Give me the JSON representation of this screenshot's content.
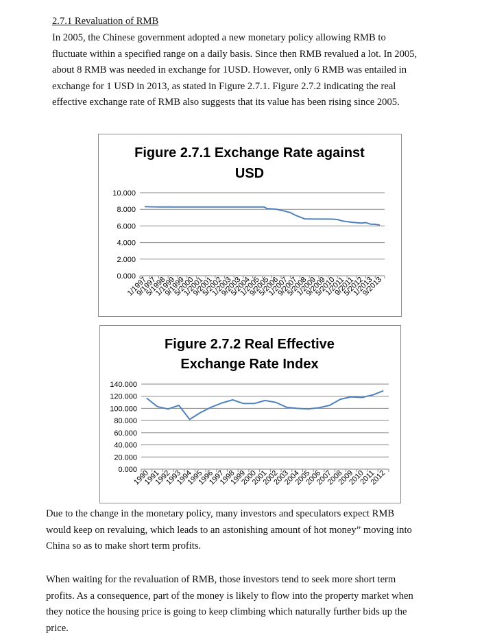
{
  "section": {
    "heading": "2.7.1 Revaluation of RMB",
    "intro_lines": [
      "In 2005, the Chinese government adopted a new monetary policy allowing RMB to",
      "fluctuate within a specified range on a daily basis. Since then RMB revalued a lot. In 2005,",
      "about 8 RMB was needed in exchange for 1USD. However, only 6 RMB was entailed in",
      "exchange for 1 USD in 2013, as stated in Figure 2.7.1. Figure 2.7.2 indicating the real",
      "effective exchange rate of RMB also suggests that its value has been rising since 2005."
    ],
    "para2_lines": [
      "Due to the change in the monetary policy, many investors and speculators expect RMB",
      "would keep on revaluing, which leads to an astonishing amount of hot money” moving into",
      "China so as to make short term profits."
    ],
    "para3_lines": [
      "When waiting for the revaluation of RMB, those investors tend to seek more short term",
      "profits. As a consequence, part of the money is likely to flow into the property market when",
      "they notice the housing price is going to keep climbing which naturally further bids up the",
      "price."
    ]
  },
  "colors": {
    "line": "#4f81bd",
    "grid": "#868686",
    "text": "#000000"
  },
  "chart_data": [
    {
      "type": "line",
      "title_lines": [
        "Figure 2.7.1 Exchange Rate against",
        "USD"
      ],
      "categories": [
        "1/1997",
        "9/1997",
        "5/1998",
        "1/1999",
        "9/1999",
        "5/2000",
        "1/2001",
        "9/2001",
        "5/2002",
        "1/2003",
        "9/2003",
        "5/2004",
        "1/2005",
        "9/2005",
        "5/2006",
        "1/2007",
        "9/2007",
        "5/2008",
        "1/2009",
        "9/2009",
        "5/2010",
        "1/2011",
        "9/2011",
        "5/2012",
        "1/2013",
        "9/2013"
      ],
      "yticks": [
        "10.000",
        "8.000",
        "6.000",
        "4.000",
        "2.000",
        "0.000"
      ],
      "ylim": [
        0,
        10
      ],
      "series": [
        {
          "x": [
            0,
            1,
            2,
            2.5,
            3,
            4,
            5,
            6,
            7,
            8,
            9,
            10,
            11,
            12,
            12.7,
            13,
            14,
            15,
            15.5,
            16,
            17,
            18,
            19,
            20,
            20.5,
            21,
            22,
            22.5,
            23,
            23.5,
            24,
            24.5,
            25
          ],
          "y": [
            8.32,
            8.3,
            8.28,
            8.3,
            8.28,
            8.28,
            8.28,
            8.28,
            8.28,
            8.28,
            8.28,
            8.28,
            8.28,
            8.28,
            8.28,
            8.1,
            8.02,
            7.75,
            7.6,
            7.3,
            6.85,
            6.83,
            6.83,
            6.82,
            6.77,
            6.6,
            6.45,
            6.4,
            6.34,
            6.4,
            6.22,
            6.2,
            6.1
          ]
        }
      ],
      "grid": true,
      "legend": "none"
    },
    {
      "type": "line",
      "title_lines": [
        "Figure 2.7.2 Real Effective",
        "Exchange Rate Index"
      ],
      "categories": [
        "1990",
        "1991",
        "1992",
        "1993",
        "1994",
        "1995",
        "1996",
        "1997",
        "1998",
        "1999",
        "2000",
        "2001",
        "2002",
        "2003",
        "2004",
        "2005",
        "2006",
        "2007",
        "2008",
        "2009",
        "2010",
        "2011",
        "2012"
      ],
      "yticks": [
        "140.000",
        "120.000",
        "100.000",
        "80.000",
        "60.000",
        "40.000",
        "20.000",
        "0.000"
      ],
      "ylim": [
        0,
        140
      ],
      "series": [
        {
          "values": [
            117,
            103,
            99,
            105,
            82,
            93,
            102,
            109,
            114,
            108,
            108,
            113,
            110,
            102,
            100,
            99,
            101,
            105,
            115,
            119,
            118,
            122,
            129
          ]
        }
      ],
      "grid": true,
      "legend": "none"
    }
  ]
}
